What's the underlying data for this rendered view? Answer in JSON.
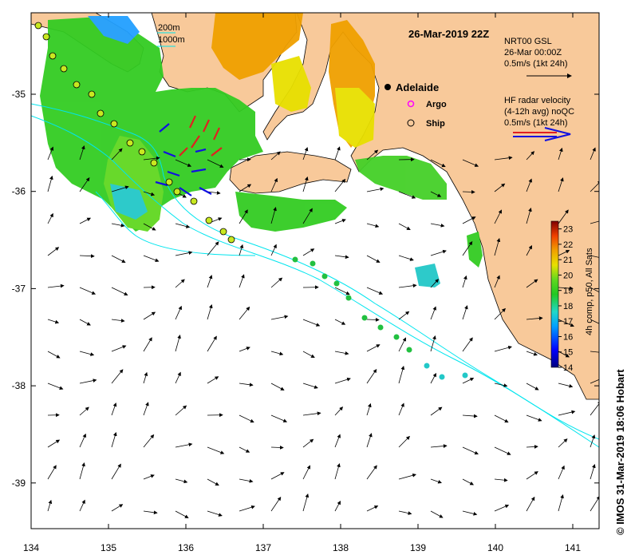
{
  "title": "26-Mar-2019 22Z",
  "credit": "© IMOS 31-Mar-2019 18:06 Hobart",
  "city": "Adelaide",
  "legend": {
    "argo": "Argo",
    "ship": "Ship",
    "isobath_200": "200m",
    "isobath_1000": "1000m",
    "model_title": "NRT00 GSL",
    "model_date": "26-Mar 00:00Z",
    "model_scale": "0.5m/s (1kt 24h)",
    "radar_title": "HF radar velocity",
    "radar_sub": "(4-12h avg) noQC",
    "radar_scale": "0.5m/s (1kt 24h)"
  },
  "colorbar": {
    "label": "4h comp, p50, All Sats",
    "ticks": [
      "14",
      "15",
      "16",
      "17",
      "18",
      "19",
      "20",
      "21",
      "22",
      "23"
    ],
    "min": 14,
    "max": 23.5
  },
  "axes": {
    "x_ticks": [
      "134",
      "135",
      "136",
      "137",
      "138",
      "139",
      "140",
      "141"
    ],
    "y_ticks": [
      "-35",
      "-36",
      "-37",
      "-38",
      "-39"
    ]
  },
  "colors": {
    "land": "#f8c99a",
    "ocean": "#ffffff",
    "isobath": "#00e5ee",
    "sst_green": "#33cc22",
    "sst_yellow": "#e8e000",
    "sst_orange": "#f0a000",
    "sst_cyan": "#22c8c8",
    "argo": "#ff00ff",
    "radar_red": "#e02020",
    "radar_blue": "#1010e0"
  }
}
